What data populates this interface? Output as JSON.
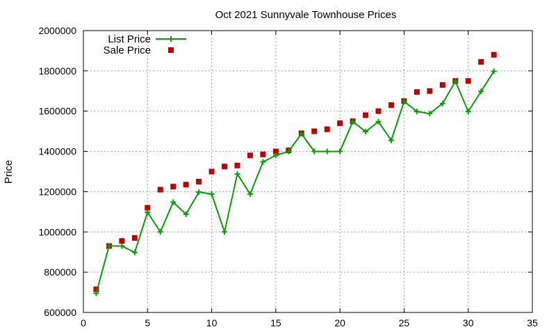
{
  "chart_data": {
    "type": "line",
    "title": "Oct 2021 Sunnyvale Townhouse Prices",
    "xlabel": "",
    "ylabel": "Price",
    "xlim": [
      0,
      35
    ],
    "ylim": [
      600000,
      2000000
    ],
    "x_ticks": [
      "0",
      "5",
      "10",
      "15",
      "20",
      "25",
      "30",
      "35"
    ],
    "y_ticks": [
      "600000",
      "800000",
      "1000000",
      "1200000",
      "1400000",
      "1600000",
      "1800000",
      "2000000"
    ],
    "grid": true,
    "legend_position": "top-left",
    "x": [
      1,
      2,
      3,
      4,
      5,
      6,
      7,
      8,
      9,
      10,
      11,
      12,
      13,
      14,
      15,
      16,
      17,
      18,
      19,
      20,
      21,
      22,
      23,
      24,
      25,
      26,
      27,
      28,
      29,
      30,
      31,
      32
    ],
    "series": [
      {
        "name": "List Price",
        "style": "line-with-plus-markers",
        "color": "#00a000",
        "values": [
          695000,
          930000,
          930000,
          898000,
          1098000,
          1000000,
          1148000,
          1088000,
          1198000,
          1188000,
          1000000,
          1288000,
          1188000,
          1348000,
          1380000,
          1400000,
          1488000,
          1400000,
          1400000,
          1400000,
          1548000,
          1498000,
          1548000,
          1455000,
          1648000,
          1598000,
          1588000,
          1638000,
          1748000,
          1598000,
          1698000,
          1798000
        ]
      },
      {
        "name": "Sale Price",
        "style": "square-markers",
        "color": "#c00000",
        "values": [
          715000,
          930000,
          955000,
          970000,
          1120000,
          1210000,
          1225000,
          1235000,
          1250000,
          1300000,
          1325000,
          1330000,
          1380000,
          1385000,
          1400000,
          1405000,
          1490000,
          1500000,
          1510000,
          1540000,
          1550000,
          1580000,
          1600000,
          1630000,
          1650000,
          1695000,
          1700000,
          1730000,
          1750000,
          1750000,
          1845000,
          1880000
        ]
      }
    ]
  }
}
